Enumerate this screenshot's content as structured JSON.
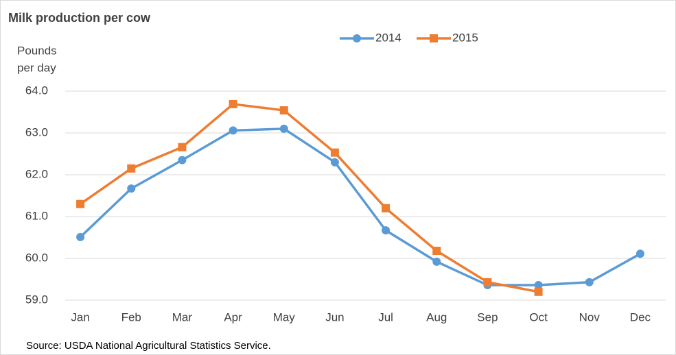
{
  "chart_data": {
    "type": "line",
    "title": "Milk production per cow",
    "ylabel": [
      "Pounds",
      "per day"
    ],
    "source": "Source: USDA National Agricultural Statistics Service.",
    "categories": [
      "Jan",
      "Feb",
      "Mar",
      "Apr",
      "May",
      "Jun",
      "Jul",
      "Aug",
      "Sep",
      "Oct",
      "Nov",
      "Dec"
    ],
    "series": [
      {
        "name": "2014",
        "color": "#5b9bd5",
        "marker": "circle",
        "values": [
          60.51,
          61.67,
          62.35,
          63.06,
          63.1,
          62.3,
          60.67,
          59.92,
          59.36,
          59.36,
          59.43,
          60.11
        ]
      },
      {
        "name": "2015",
        "color": "#ed7d31",
        "marker": "square",
        "values": [
          61.3,
          62.15,
          62.66,
          63.69,
          63.54,
          62.53,
          61.2,
          60.18,
          59.43,
          59.2,
          null,
          null
        ]
      }
    ],
    "ylim": [
      59.0,
      64.0
    ],
    "yticks": [
      {
        "value": 59,
        "label": "59.0"
      },
      {
        "value": 60,
        "label": "60.0"
      },
      {
        "value": 61,
        "label": "61.0"
      },
      {
        "value": 62,
        "label": "62.0"
      },
      {
        "value": 63,
        "label": "63.0"
      },
      {
        "value": 64,
        "label": "64.0"
      }
    ],
    "grid": true,
    "legend": "top"
  }
}
